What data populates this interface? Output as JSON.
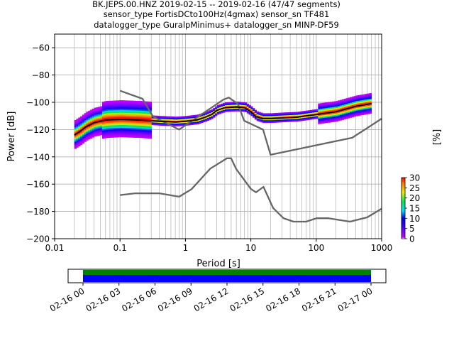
{
  "title_lines": [
    "BK.JEPS.00.HNZ   2019-02-15 -- 2019-02-16  (47/47 segments)",
    "sensor_type FortisDCto100Hz(4gmax) sensor_sn TF481",
    "datalogger_type GuralpMinimus+ datalogger_sn MINP-DF59"
  ],
  "colorbar": {
    "label": "[%]",
    "ticks": [
      "0",
      "5",
      "10",
      "15",
      "20",
      "25",
      "30"
    ],
    "range": [
      0,
      30
    ]
  },
  "colors": {
    "model_line": "#666666",
    "mode_line": "#000000",
    "coverage_data": "#0000ff",
    "coverage_gaps": "#008000"
  },
  "timeline": {
    "tick_labels": [
      "02-16 00",
      "02-16 03",
      "02-16 06",
      "02-16 09",
      "02-16 12",
      "02-16 15",
      "02-16 18",
      "02-16 21",
      "02-17 00"
    ],
    "start_hour": 0,
    "end_hour": 24
  },
  "chart_data": {
    "type": "heatmap",
    "x_scale": "log",
    "xlabel": "Period [s]",
    "ylabel": "Power [dB]",
    "xlim": [
      0.01,
      1000
    ],
    "ylim": [
      -200,
      -50
    ],
    "x_tick_labels": [
      "0.01",
      "0.1",
      "1",
      "10",
      "100",
      "1000"
    ],
    "y_tick_labels": [
      "−200",
      "−180",
      "−160",
      "−140",
      "−120",
      "−100",
      "−80",
      "−60"
    ],
    "grid": true,
    "noise_model_high": [
      [
        0.1,
        -91.5
      ],
      [
        0.22,
        -97.4
      ],
      [
        0.32,
        -110.5
      ],
      [
        0.8,
        -120
      ],
      [
        3.8,
        -98
      ],
      [
        4.6,
        -96.5
      ],
      [
        6.3,
        -101
      ],
      [
        7.9,
        -113.5
      ],
      [
        15.4,
        -120
      ],
      [
        20,
        -138.5
      ],
      [
        354.8,
        -126
      ],
      [
        1000,
        -112
      ]
    ],
    "noise_model_low": [
      [
        0.1,
        -168
      ],
      [
        0.17,
        -166.7
      ],
      [
        0.4,
        -166.7
      ],
      [
        0.8,
        -169.2
      ],
      [
        1.24,
        -163.7
      ],
      [
        2.4,
        -148.6
      ],
      [
        4.3,
        -141.1
      ],
      [
        5.0,
        -141.1
      ],
      [
        6.0,
        -149
      ],
      [
        10,
        -163.5
      ],
      [
        12,
        -166
      ],
      [
        15.6,
        -162
      ],
      [
        21.9,
        -177.5
      ],
      [
        31.6,
        -185
      ],
      [
        45,
        -187.5
      ],
      [
        70,
        -187.5
      ],
      [
        101,
        -185
      ],
      [
        154,
        -185
      ],
      [
        328,
        -187.5
      ],
      [
        600,
        -184.4
      ],
      [
        1000,
        -178
      ]
    ],
    "mode_curve": [
      [
        0.02,
        -124
      ],
      [
        0.025,
        -121
      ],
      [
        0.03,
        -118
      ],
      [
        0.04,
        -115
      ],
      [
        0.06,
        -113
      ],
      [
        0.1,
        -112.5
      ],
      [
        0.2,
        -113
      ],
      [
        0.4,
        -114
      ],
      [
        0.7,
        -114.5
      ],
      [
        1.0,
        -114
      ],
      [
        1.5,
        -113
      ],
      [
        2.0,
        -111
      ],
      [
        2.5,
        -109
      ],
      [
        3.0,
        -106
      ],
      [
        4.0,
        -104
      ],
      [
        6.0,
        -103.5
      ],
      [
        8.0,
        -104
      ],
      [
        10,
        -107
      ],
      [
        12,
        -110.5
      ],
      [
        15,
        -112
      ],
      [
        20,
        -112
      ],
      [
        30,
        -111.5
      ],
      [
        50,
        -111
      ],
      [
        100,
        -109
      ],
      [
        200,
        -107
      ],
      [
        400,
        -103
      ],
      [
        700,
        -101
      ]
    ],
    "pdf_percent": [
      [
        0.02,
        -122,
        20
      ],
      [
        0.03,
        -116,
        10
      ],
      [
        0.05,
        -110,
        6
      ],
      [
        0.07,
        -104,
        2
      ],
      [
        0.1,
        -102,
        1
      ],
      [
        0.15,
        -106,
        2
      ],
      [
        0.2,
        -108,
        3
      ],
      [
        0.05,
        -114,
        25
      ],
      [
        0.1,
        -113,
        25
      ],
      [
        0.3,
        -113,
        25
      ],
      [
        0.8,
        -114,
        28
      ],
      [
        1.5,
        -113,
        20
      ],
      [
        3,
        -106,
        8
      ],
      [
        5,
        -103,
        12
      ],
      [
        8,
        -104,
        10
      ],
      [
        10,
        -107,
        15
      ],
      [
        20,
        -112,
        25
      ],
      [
        50,
        -110,
        15
      ],
      [
        100,
        -108,
        10
      ],
      [
        300,
        -105,
        6
      ],
      [
        600,
        -100,
        2
      ],
      [
        600,
        -96,
        1
      ]
    ]
  }
}
